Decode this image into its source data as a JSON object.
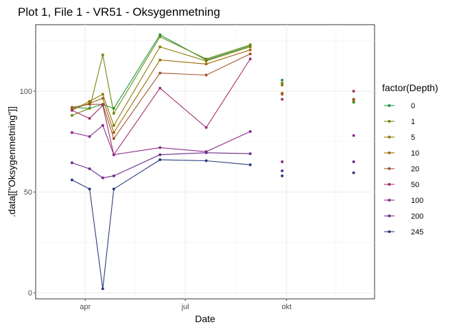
{
  "chart_data": {
    "type": "line",
    "title": "Plot 1, File 1 - VR51  -  Oksygenmetning",
    "xlabel": "Date",
    "ylabel": ".data[[\"Oksygenmetning\"]]",
    "xlim": [
      "2019-02-15",
      "2019-12-20"
    ],
    "ylim": [
      -3,
      133
    ],
    "y_ticks": [
      0,
      50,
      100
    ],
    "x_ticks": [
      {
        "date": "2019-04-01",
        "label": "apr"
      },
      {
        "date": "2019-07-01",
        "label": "jul"
      },
      {
        "date": "2019-10-01",
        "label": "okt"
      }
    ],
    "grid": true,
    "legend": {
      "title": "factor(Depth)",
      "placement": "right"
    },
    "x": [
      "2019-03-20",
      "2019-04-05",
      "2019-04-17",
      "2019-04-27",
      "2019-06-08",
      "2019-07-20",
      "2019-08-29",
      "2019-09-27",
      "2019-12-01"
    ],
    "series": [
      {
        "name": "0",
        "color": "#1a9641",
        "values": [
          92,
          91.5,
          93.5,
          91.5,
          128,
          115.5,
          122.5,
          105.5,
          94.5
        ]
      },
      {
        "name": "1",
        "color": "#6a8a0a",
        "values": [
          88,
          91.5,
          118,
          89,
          127,
          116,
          123,
          104,
          95
        ]
      },
      {
        "name": "5",
        "color": "#8a7a00",
        "values": [
          90.5,
          95,
          98.5,
          83,
          122,
          115,
          122,
          103,
          96
        ]
      },
      {
        "name": "10",
        "color": "#996a00",
        "values": [
          91,
          94,
          96.5,
          79.5,
          115.5,
          113.5,
          120.5,
          99,
          96
        ]
      },
      {
        "name": "20",
        "color": "#a0522d",
        "values": [
          92,
          93.5,
          93.5,
          76.5,
          109,
          108,
          118.5,
          98.5,
          96
        ]
      },
      {
        "name": "50",
        "color": "#a02d6e",
        "values": [
          90.5,
          86.5,
          93,
          68.5,
          101.5,
          82,
          116,
          96,
          100
        ]
      },
      {
        "name": "100",
        "color": "#8a2a8a",
        "values": [
          79.5,
          77.5,
          83,
          68.5,
          72,
          70,
          80,
          65,
          78
        ]
      },
      {
        "name": "200",
        "color": "#6a2a8a",
        "values": [
          64.5,
          61.5,
          57,
          58,
          68.5,
          69.5,
          69,
          60.5,
          65
        ]
      },
      {
        "name": "245",
        "color": "#2a3a7a",
        "values": [
          56,
          51.5,
          2,
          51.5,
          66,
          65.5,
          63.5,
          58,
          59.5
        ]
      }
    ],
    "series_line_points": 7
  }
}
